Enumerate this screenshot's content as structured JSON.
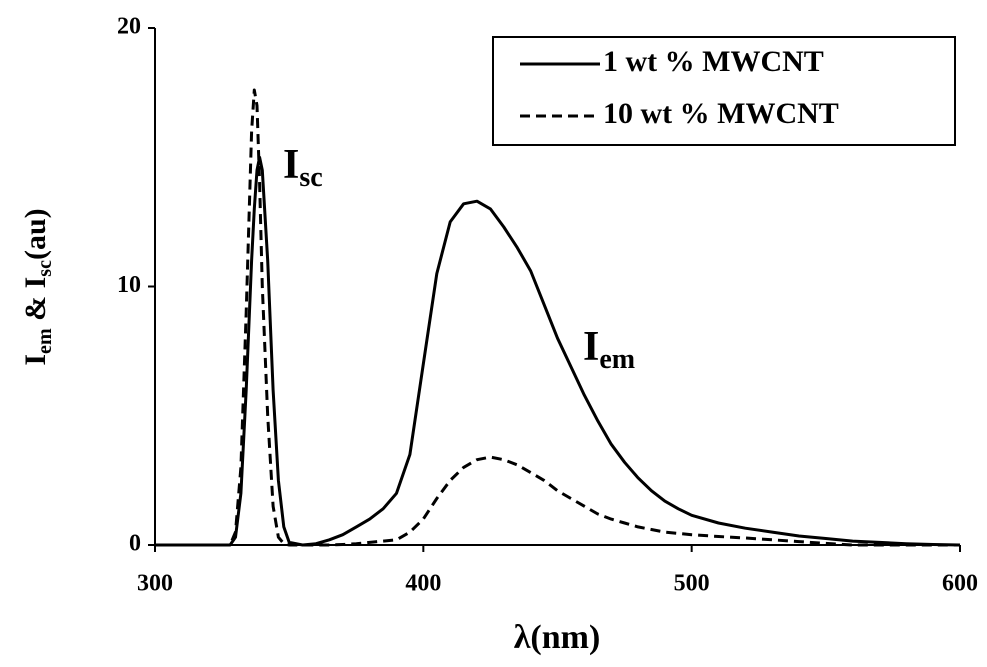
{
  "chart_data": {
    "type": "line",
    "xlabel": "λ(nm)",
    "ylabel": [
      "I",
      "em",
      " & I",
      "sc",
      "(au)"
    ],
    "annotations": [
      [
        "I",
        "sc"
      ],
      [
        "I",
        "em"
      ]
    ],
    "x": [
      300,
      320,
      328,
      330,
      332,
      334,
      336,
      337,
      338,
      339,
      340,
      342,
      344,
      346,
      348,
      350,
      355,
      360,
      365,
      370,
      375,
      380,
      385,
      390,
      395,
      400,
      405,
      410,
      415,
      420,
      425,
      430,
      435,
      440,
      445,
      450,
      455,
      460,
      465,
      470,
      475,
      480,
      485,
      490,
      495,
      500,
      510,
      520,
      530,
      540,
      550,
      560,
      570,
      580,
      590,
      600
    ],
    "series": [
      {
        "name": "1 wt % MWCNT",
        "color": "#000000",
        "dash": false,
        "values": [
          0,
          0,
          0,
          0.3,
          2,
          6,
          11,
          13,
          14.5,
          15,
          14.5,
          11,
          6,
          2.5,
          0.7,
          0.1,
          0,
          0.05,
          0.2,
          0.4,
          0.7,
          1.0,
          1.4,
          2.0,
          3.5,
          7,
          10.5,
          12.5,
          13.2,
          13.3,
          13,
          12.3,
          11.5,
          10.6,
          9.3,
          8,
          6.9,
          5.8,
          4.8,
          3.9,
          3.2,
          2.6,
          2.1,
          1.7,
          1.4,
          1.15,
          0.85,
          0.65,
          0.5,
          0.35,
          0.25,
          0.15,
          0.1,
          0.05,
          0.02,
          0
        ]
      },
      {
        "name": "10 wt % MWCNT",
        "color": "#000000",
        "dash": true,
        "values": [
          0,
          0,
          0,
          0.5,
          3,
          9,
          16,
          17.6,
          17,
          14,
          10,
          5,
          1.5,
          0.3,
          0.05,
          0,
          0,
          0,
          0,
          0.02,
          0.05,
          0.1,
          0.15,
          0.2,
          0.5,
          1,
          1.8,
          2.5,
          3,
          3.3,
          3.4,
          3.3,
          3.1,
          2.8,
          2.5,
          2.1,
          1.8,
          1.5,
          1.2,
          1,
          0.85,
          0.7,
          0.6,
          0.5,
          0.45,
          0.4,
          0.33,
          0.27,
          0.2,
          0.13,
          0.06,
          0,
          0,
          0,
          0,
          0
        ]
      }
    ],
    "xlim": [
      300,
      600
    ],
    "xticks": [
      300,
      400,
      500,
      600
    ],
    "ylim": [
      0,
      20
    ],
    "yticks": [
      0,
      10,
      20
    ],
    "legend": "upper right"
  }
}
